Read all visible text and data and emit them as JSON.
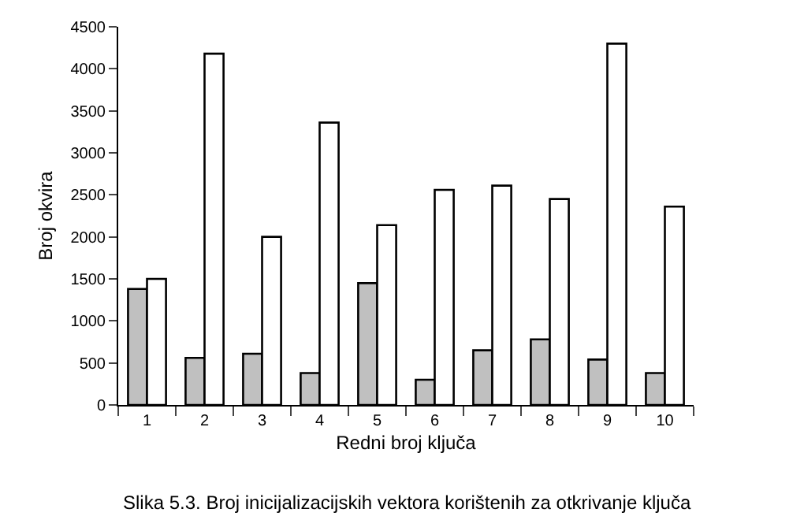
{
  "chart_data": {
    "type": "bar",
    "xlabel": "Redni broj ključa",
    "ylabel": "Broj okvira",
    "categories": [
      "1",
      "2",
      "3",
      "4",
      "5",
      "6",
      "7",
      "8",
      "9",
      "10"
    ],
    "series": [
      {
        "color": "#c0c0c0",
        "values": [
          1380,
          560,
          610,
          380,
          1450,
          300,
          650,
          780,
          540,
          380
        ]
      },
      {
        "color": "#ffffff",
        "values": [
          1500,
          4180,
          2000,
          3360,
          2140,
          2560,
          2610,
          2450,
          4300,
          2360
        ]
      }
    ],
    "ylim": [
      0,
      4500
    ],
    "yticks": [
      0,
      500,
      1000,
      1500,
      2000,
      2500,
      3000,
      3500,
      4000,
      4500
    ],
    "annotations": [
      "Slika 5.3. Broj inicijalizacijskih vektora korištenih za otkrivanje ključa"
    ]
  }
}
